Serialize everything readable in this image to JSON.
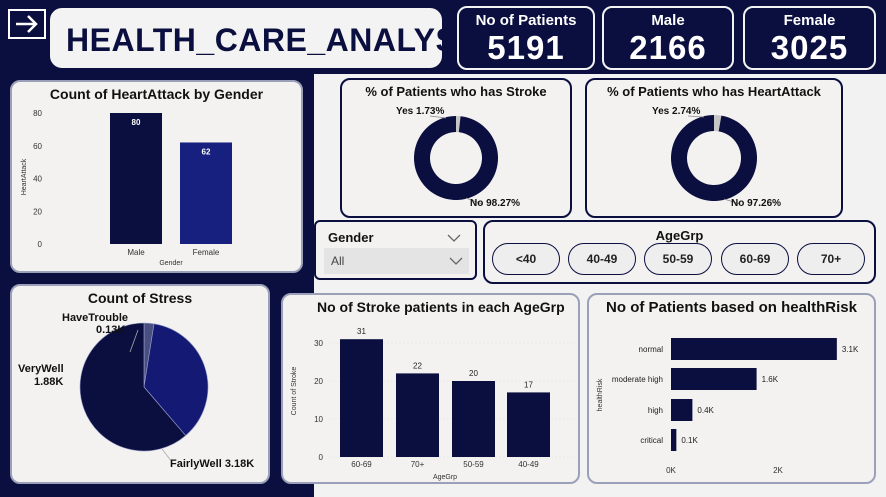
{
  "header": {
    "title": "HEALTH_CARE_ANALYSIS",
    "kpis": [
      {
        "label": "No of Patients",
        "value": "5191"
      },
      {
        "label": "Male",
        "value": "2166"
      },
      {
        "label": "Female",
        "value": "3025"
      }
    ]
  },
  "charts": {
    "heart_gender": {
      "title": "Count of HeartAttack by Gender"
    },
    "stroke_donut": {
      "title": "% of Patients who has Stroke",
      "yes_label": "Yes 1.73%",
      "no_label": "No 98.27%"
    },
    "heart_donut": {
      "title": "% of Patients who has HeartAttack",
      "yes_label": "Yes 2.74%",
      "no_label": "No 97.26%"
    },
    "stress": {
      "title": "Count of Stress",
      "labels": [
        "HaveTrouble",
        "0.13K",
        "VeryWell",
        "1.88K",
        "FairlyWell 3.18K"
      ]
    },
    "stroke_age": {
      "title": "No of Stroke patients in each AgeGrp"
    },
    "health_risk": {
      "title": "No of Patients based on healthRisk"
    }
  },
  "filters": {
    "gender": {
      "label": "Gender",
      "value": "All"
    },
    "agegrp": {
      "label": "AgeGrp",
      "options": [
        "<40",
        "40-49",
        "50-59",
        "60-69",
        "70+"
      ]
    }
  },
  "chart_data": [
    {
      "type": "bar",
      "title": "Count of HeartAttack by Gender",
      "categories": [
        "Male",
        "Female"
      ],
      "values": [
        80,
        62
      ],
      "xlabel": "Gender",
      "ylabel": "HeartAttack",
      "ylim": [
        0,
        80
      ],
      "yticks": [
        "0",
        "20",
        "40",
        "60",
        "80"
      ],
      "colors": [
        "#0b0f3f",
        "#17207e"
      ]
    },
    {
      "type": "pie",
      "title": "% of Patients who has Stroke",
      "categories": [
        "Yes",
        "No"
      ],
      "values": [
        1.73,
        98.27
      ],
      "colors": [
        "#c6c6c6",
        "#0b0f3f"
      ]
    },
    {
      "type": "pie",
      "title": "% of Patients who has HeartAttack",
      "categories": [
        "Yes",
        "No"
      ],
      "values": [
        2.74,
        97.26
      ],
      "colors": [
        "#c6c6c6",
        "#0b0f3f"
      ]
    },
    {
      "type": "pie",
      "title": "Count of Stress",
      "categories": [
        "HaveTrouble",
        "VeryWell",
        "FairlyWell"
      ],
      "values": [
        0.13,
        1.88,
        3.18
      ],
      "colors": [
        "#4a4f82",
        "#141a74",
        "#0b0f3f"
      ]
    },
    {
      "type": "bar",
      "title": "No of Stroke patients in each AgeGrp",
      "categories": [
        "60-69",
        "70+",
        "50-59",
        "40-49"
      ],
      "values": [
        31,
        22,
        20,
        17
      ],
      "xlabel": "AgeGrp",
      "ylabel": "Count of Stroke",
      "ylim": [
        0,
        31
      ],
      "yticks": [
        "0",
        "10",
        "20",
        "30"
      ],
      "color": "#0b0f3f"
    },
    {
      "type": "bar",
      "orientation": "horizontal",
      "title": "No of Patients based on healthRisk",
      "categories": [
        "normal",
        "moderate high",
        "high",
        "critical"
      ],
      "values": [
        3.1,
        1.6,
        0.4,
        0.1
      ],
      "value_labels": [
        "3.1K",
        "1.6K",
        "0.4K",
        "0.1K"
      ],
      "ylabel": "healthRisk",
      "xticks": [
        "0K",
        "2K"
      ],
      "color": "#0b0f3f"
    }
  ]
}
